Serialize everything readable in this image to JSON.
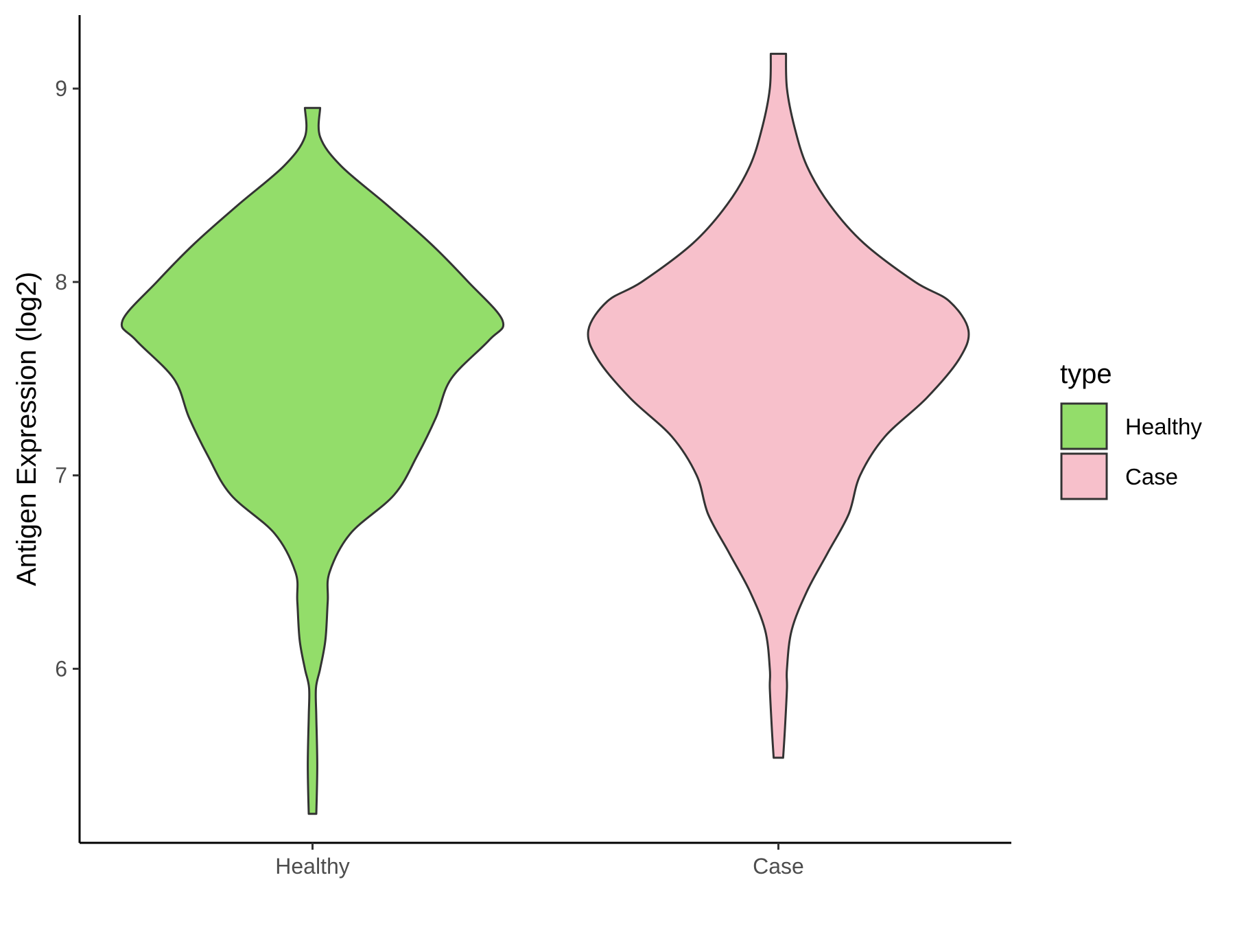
{
  "chart_data": {
    "type": "violin",
    "title": "",
    "xlabel": "",
    "ylabel": "Antigen Expression (log2)",
    "categories": [
      "Healthy",
      "Case"
    ],
    "ylim": [
      5.1,
      9.38
    ],
    "yticks": [
      6,
      7,
      8,
      9
    ],
    "grid": false,
    "legend": {
      "title": "type",
      "position": "right",
      "entries": [
        {
          "label": "Healthy",
          "color": "#93dd6a"
        },
        {
          "label": "Case",
          "color": "#f7c0cb"
        }
      ]
    },
    "series": [
      {
        "name": "Healthy",
        "color": "#93dd6a",
        "min": 5.25,
        "max": 8.9,
        "density_profile": [
          [
            5.25,
            0.02
          ],
          [
            5.5,
            0.025
          ],
          [
            5.75,
            0.02
          ],
          [
            5.9,
            0.018
          ],
          [
            6.0,
            0.04
          ],
          [
            6.15,
            0.068
          ],
          [
            6.35,
            0.08
          ],
          [
            6.5,
            0.09
          ],
          [
            6.7,
            0.2
          ],
          [
            6.9,
            0.43
          ],
          [
            7.1,
            0.55
          ],
          [
            7.3,
            0.65
          ],
          [
            7.5,
            0.73
          ],
          [
            7.7,
            0.93
          ],
          [
            7.8,
            1.0
          ],
          [
            8.0,
            0.82
          ],
          [
            8.2,
            0.62
          ],
          [
            8.4,
            0.39
          ],
          [
            8.6,
            0.15
          ],
          [
            8.75,
            0.04
          ],
          [
            8.9,
            0.04
          ]
        ]
      },
      {
        "name": "Case",
        "color": "#f7c0cb",
        "min": 5.54,
        "max": 9.18,
        "density_profile": [
          [
            5.54,
            0.025
          ],
          [
            5.7,
            0.035
          ],
          [
            5.9,
            0.045
          ],
          [
            6.0,
            0.045
          ],
          [
            6.2,
            0.07
          ],
          [
            6.4,
            0.15
          ],
          [
            6.6,
            0.26
          ],
          [
            6.8,
            0.37
          ],
          [
            7.0,
            0.43
          ],
          [
            7.2,
            0.56
          ],
          [
            7.4,
            0.78
          ],
          [
            7.6,
            0.95
          ],
          [
            7.75,
            1.0
          ],
          [
            7.9,
            0.9
          ],
          [
            8.0,
            0.72
          ],
          [
            8.2,
            0.45
          ],
          [
            8.4,
            0.27
          ],
          [
            8.6,
            0.15
          ],
          [
            8.8,
            0.085
          ],
          [
            9.0,
            0.045
          ],
          [
            9.18,
            0.04
          ]
        ]
      }
    ]
  }
}
